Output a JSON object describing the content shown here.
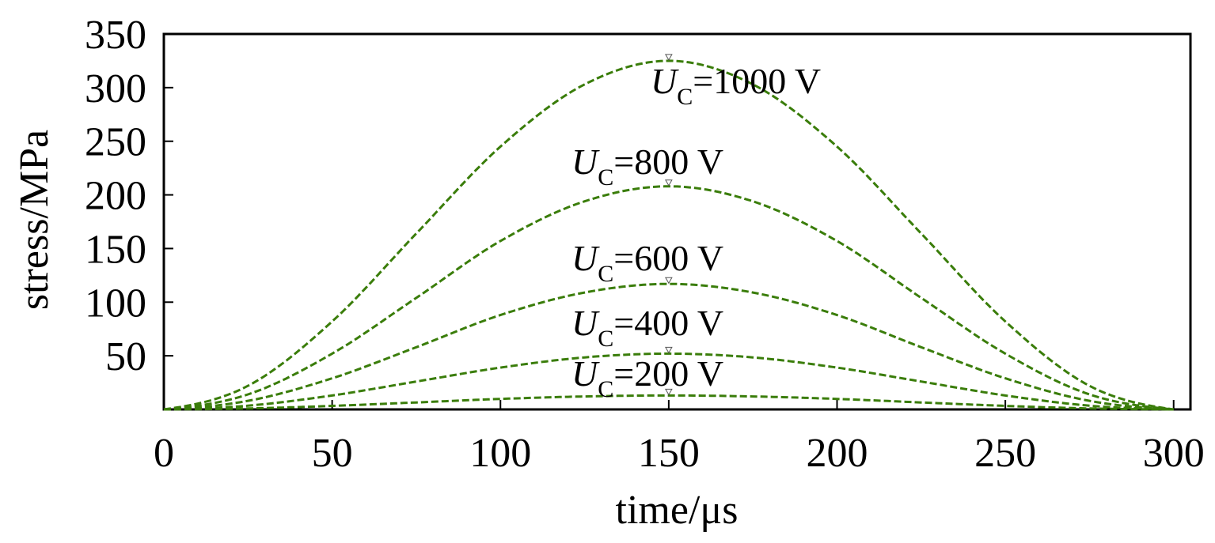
{
  "chart_data": {
    "type": "line",
    "xlabel": "time/μs",
    "ylabel": "stress/MPa",
    "xlim": [
      0,
      305
    ],
    "ylim": [
      0,
      350
    ],
    "x_ticks": [
      0,
      50,
      100,
      150,
      200,
      250,
      300
    ],
    "y_ticks": [
      50,
      100,
      150,
      200,
      250,
      300,
      350
    ],
    "grid": false,
    "line_color": "#3a7d0a",
    "line_style": "dashed",
    "series": [
      {
        "name": "UC=1000 V",
        "label_main": "U",
        "label_sub": "C",
        "label_rest": "=1000 V",
        "x": [
          0,
          25,
          50,
          75,
          100,
          125,
          150,
          175,
          200,
          225,
          250,
          275,
          300
        ],
        "y": [
          0,
          22,
          82,
          164,
          245,
          303,
          325,
          303,
          245,
          164,
          82,
          22,
          0
        ]
      },
      {
        "name": "UC=800 V",
        "label_main": "U",
        "label_sub": "C",
        "label_rest": "=800 V",
        "x": [
          0,
          25,
          50,
          75,
          100,
          125,
          150,
          175,
          200,
          225,
          250,
          275,
          300
        ],
        "y": [
          0,
          14,
          52,
          104,
          157,
          194,
          208,
          194,
          157,
          104,
          52,
          14,
          0
        ]
      },
      {
        "name": "UC=600 V",
        "label_main": "U",
        "label_sub": "C",
        "label_rest": "=600 V",
        "x": [
          0,
          25,
          50,
          75,
          100,
          125,
          150,
          175,
          200,
          225,
          250,
          275,
          300
        ],
        "y": [
          0,
          8,
          29,
          58,
          88,
          109,
          117,
          109,
          88,
          58,
          29,
          8,
          0
        ]
      },
      {
        "name": "UC=400 V",
        "label_main": "U",
        "label_sub": "C",
        "label_rest": "=400 V",
        "x": [
          0,
          25,
          50,
          75,
          100,
          125,
          150,
          175,
          200,
          225,
          250,
          275,
          300
        ],
        "y": [
          0,
          3.5,
          13,
          26,
          39,
          48.5,
          52,
          48.5,
          39,
          26,
          13,
          3.5,
          0
        ]
      },
      {
        "name": "UC=200 V",
        "label_main": "U",
        "label_sub": "C",
        "label_rest": "=200 V",
        "x": [
          0,
          25,
          50,
          75,
          100,
          125,
          150,
          175,
          200,
          225,
          250,
          275,
          300
        ],
        "y": [
          0,
          0.9,
          3.3,
          6.5,
          9.8,
          12.1,
          13,
          12.1,
          9.8,
          6.5,
          3.3,
          0.9,
          0
        ]
      }
    ]
  }
}
